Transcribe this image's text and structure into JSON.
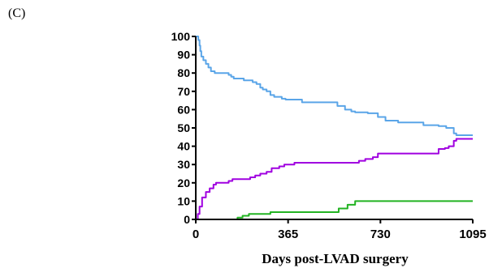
{
  "panel_label": "(C)",
  "chart_data": {
    "type": "line",
    "title": "",
    "xlabel": "Days post-LVAD surgery",
    "ylabel": "",
    "xlim": [
      0,
      1095
    ],
    "ylim": [
      0,
      100
    ],
    "x_ticks": [
      0,
      365,
      730,
      1095
    ],
    "y_ticks": [
      0,
      10,
      20,
      30,
      40,
      50,
      60,
      70,
      80,
      90,
      100
    ],
    "grid": false,
    "legend": "none",
    "step": true,
    "series": [
      {
        "color": "#5aa5e8",
        "points": [
          [
            0,
            100
          ],
          [
            10,
            98
          ],
          [
            15,
            95
          ],
          [
            18,
            92
          ],
          [
            22,
            89
          ],
          [
            30,
            87
          ],
          [
            40,
            85
          ],
          [
            50,
            83
          ],
          [
            60,
            81
          ],
          [
            75,
            80
          ],
          [
            130,
            79
          ],
          [
            140,
            78
          ],
          [
            150,
            77
          ],
          [
            190,
            76
          ],
          [
            225,
            75
          ],
          [
            240,
            74
          ],
          [
            255,
            72
          ],
          [
            265,
            71
          ],
          [
            280,
            70
          ],
          [
            295,
            68
          ],
          [
            310,
            67
          ],
          [
            340,
            66
          ],
          [
            355,
            65.5
          ],
          [
            420,
            64
          ],
          [
            560,
            62
          ],
          [
            590,
            60
          ],
          [
            615,
            59
          ],
          [
            630,
            58.5
          ],
          [
            680,
            58
          ],
          [
            720,
            56
          ],
          [
            750,
            54
          ],
          [
            800,
            53
          ],
          [
            900,
            51.5
          ],
          [
            960,
            51
          ],
          [
            990,
            50
          ],
          [
            1020,
            47
          ],
          [
            1030,
            46
          ],
          [
            1095,
            46
          ]
        ]
      },
      {
        "color": "#a000e0",
        "points": [
          [
            0,
            0
          ],
          [
            8,
            3
          ],
          [
            15,
            7
          ],
          [
            25,
            12
          ],
          [
            40,
            15
          ],
          [
            55,
            17
          ],
          [
            70,
            19
          ],
          [
            80,
            20
          ],
          [
            130,
            21
          ],
          [
            145,
            22
          ],
          [
            215,
            23
          ],
          [
            235,
            24
          ],
          [
            255,
            25
          ],
          [
            280,
            26
          ],
          [
            300,
            28
          ],
          [
            330,
            29
          ],
          [
            350,
            30
          ],
          [
            390,
            31
          ],
          [
            645,
            32
          ],
          [
            670,
            33
          ],
          [
            700,
            34
          ],
          [
            720,
            36
          ],
          [
            960,
            38.5
          ],
          [
            985,
            39
          ],
          [
            1000,
            40
          ],
          [
            1020,
            43
          ],
          [
            1030,
            44
          ],
          [
            1095,
            44
          ]
        ]
      },
      {
        "color": "#22b322",
        "points": [
          [
            0,
            0
          ],
          [
            150,
            0
          ],
          [
            165,
            1
          ],
          [
            185,
            2
          ],
          [
            210,
            3
          ],
          [
            280,
            3
          ],
          [
            295,
            4
          ],
          [
            555,
            4
          ],
          [
            565,
            6
          ],
          [
            590,
            6
          ],
          [
            600,
            8
          ],
          [
            630,
            10
          ],
          [
            1095,
            10
          ]
        ]
      },
      {
        "color": "#e08000",
        "points": [
          [
            0,
            0
          ],
          [
            1095,
            0
          ]
        ]
      }
    ]
  }
}
